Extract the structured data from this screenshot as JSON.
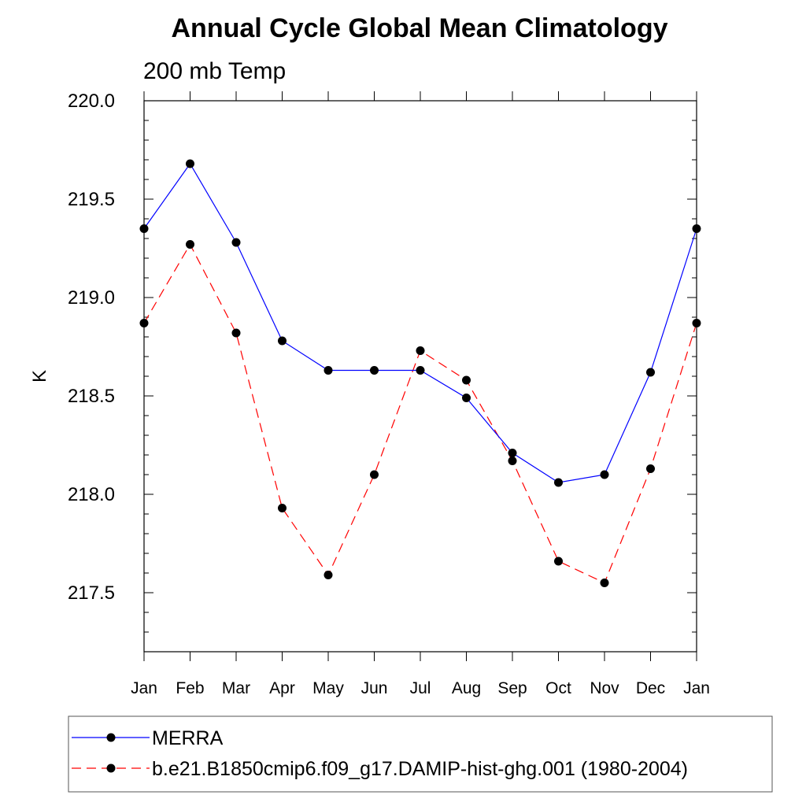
{
  "chart_data": {
    "type": "line",
    "title": "Annual Cycle Global Mean Climatology",
    "subtitle": "200 mb Temp",
    "xlabel": "",
    "ylabel": "K",
    "x": [
      "Jan",
      "Feb",
      "Mar",
      "Apr",
      "May",
      "Jun",
      "Jul",
      "Aug",
      "Sep",
      "Oct",
      "Nov",
      "Dec",
      "Jan"
    ],
    "ylim": [
      217.2,
      220.0
    ],
    "yticks": [
      "220.0",
      "219.5",
      "219.0",
      "218.5",
      "218.0",
      "217.5"
    ],
    "legend_position": "bottom",
    "grid": false,
    "series": [
      {
        "name": "MERRA",
        "color": "#0000ff",
        "line_style": "solid",
        "marker": "filled-circle",
        "values": [
          219.35,
          219.68,
          219.28,
          218.78,
          218.63,
          218.63,
          218.63,
          218.49,
          218.21,
          218.06,
          218.1,
          218.62,
          219.35
        ]
      },
      {
        "name": "b.e21.B1850cmip6.f09_g17.DAMIP-hist-ghg.001 (1980-2004)",
        "color": "#ff0000",
        "line_style": "dashed",
        "marker": "filled-circle",
        "values": [
          218.87,
          219.27,
          218.82,
          217.93,
          217.59,
          218.1,
          218.73,
          218.58,
          218.17,
          217.66,
          217.55,
          218.13,
          218.87
        ]
      }
    ]
  }
}
